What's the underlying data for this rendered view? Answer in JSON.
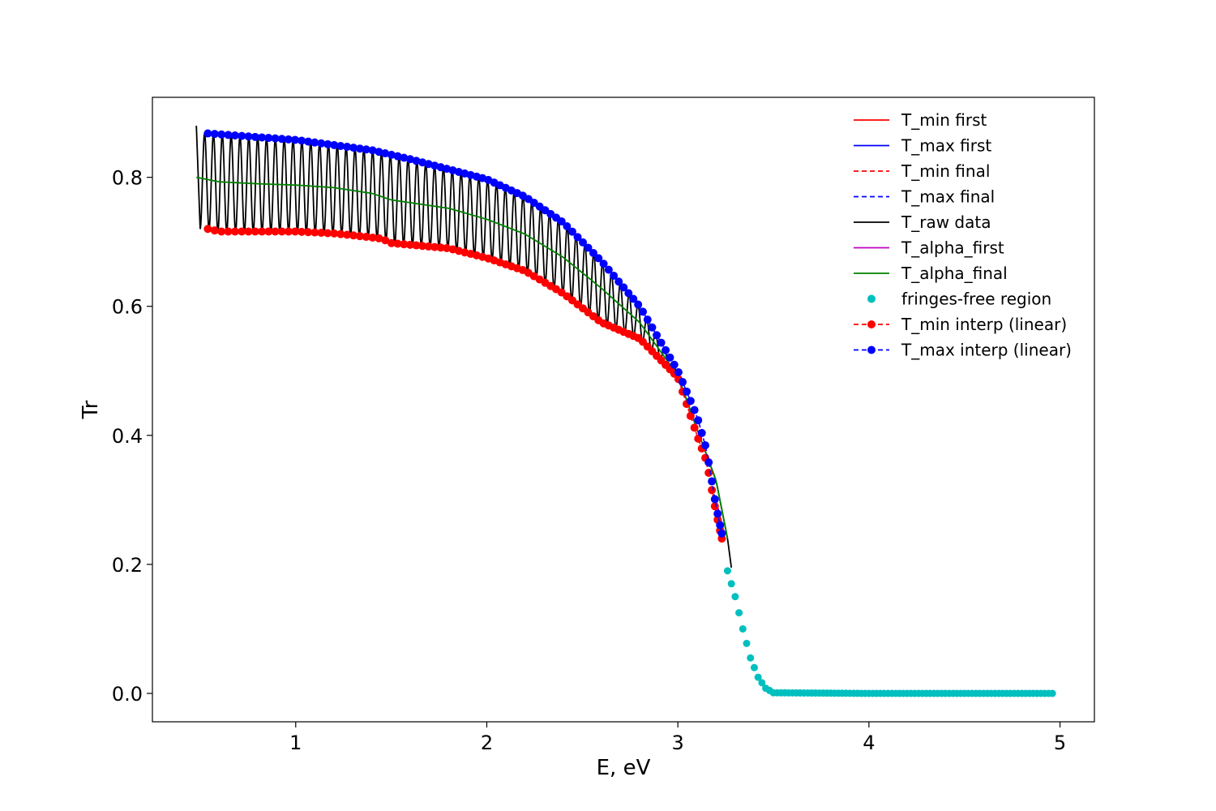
{
  "chart_data": {
    "type": "line",
    "title": "",
    "xlabel": "E, eV",
    "ylabel": "Tr",
    "xlim": [
      0.25,
      5.18
    ],
    "ylim": [
      -0.044,
      0.924
    ],
    "xticks": [
      1,
      2,
      3,
      4,
      5
    ],
    "xtick_labels": [
      "1",
      "2",
      "3",
      "4",
      "5"
    ],
    "yticks": [
      0.0,
      0.2,
      0.4,
      0.6,
      0.8
    ],
    "ytick_labels": [
      "0.0",
      "0.2",
      "0.4",
      "0.6",
      "0.8"
    ],
    "grid": false,
    "legend_position": "top-right",
    "legend": [
      {
        "label": "T_min first",
        "color": "#ff0000",
        "style": "solid",
        "marker": false
      },
      {
        "label": "T_max first",
        "color": "#0000ff",
        "style": "solid",
        "marker": false
      },
      {
        "label": "T_min final",
        "color": "#ff0000",
        "style": "dashed",
        "marker": false
      },
      {
        "label": "T_max final",
        "color": "#0000ff",
        "style": "dashed",
        "marker": false
      },
      {
        "label": "T_raw data",
        "color": "#000000",
        "style": "solid",
        "marker": false
      },
      {
        "label": "T_alpha_first",
        "color": "#bf00bf",
        "style": "solid",
        "marker": false
      },
      {
        "label": "T_alpha_final",
        "color": "#008000",
        "style": "solid",
        "marker": false
      },
      {
        "label": "fringes-free region",
        "color": "#00bfbf",
        "style": "none",
        "marker": true
      },
      {
        "label": "T_min interp (linear)",
        "color": "#ff0000",
        "style": "dashed",
        "marker": true
      },
      {
        "label": "T_max interp (linear)",
        "color": "#0000ff",
        "style": "dashed",
        "marker": true
      }
    ],
    "series": [
      {
        "name": "T_max interp (linear)",
        "color": "#0000ff",
        "x": [
          0.54,
          1.0,
          1.4,
          1.6,
          2.0,
          2.2,
          2.4,
          2.6,
          2.8,
          3.0,
          3.1,
          3.15,
          3.2,
          3.23
        ],
        "y": [
          0.868,
          0.858,
          0.842,
          0.828,
          0.797,
          0.77,
          0.73,
          0.67,
          0.6,
          0.5,
          0.43,
          0.378,
          0.29,
          0.248
        ]
      },
      {
        "name": "T_min interp (linear)",
        "color": "#ff0000",
        "x": [
          0.54,
          0.6,
          1.0,
          1.2,
          1.3,
          1.45,
          1.5,
          1.8,
          2.0,
          2.2,
          2.4,
          2.6,
          2.8,
          3.0,
          3.1,
          3.15,
          3.2,
          3.23
        ],
        "y": [
          0.72,
          0.716,
          0.716,
          0.713,
          0.71,
          0.705,
          0.698,
          0.69,
          0.675,
          0.655,
          0.62,
          0.575,
          0.55,
          0.49,
          0.4,
          0.36,
          0.28,
          0.24
        ]
      },
      {
        "name": "T_alpha_final",
        "color": "#008000",
        "x": [
          0.48,
          0.6,
          0.8,
          1.0,
          1.2,
          1.4,
          1.5,
          1.8,
          2.0,
          2.2,
          2.4,
          2.6,
          2.8,
          3.0,
          3.1,
          3.2,
          3.26
        ],
        "y": [
          0.8,
          0.793,
          0.79,
          0.788,
          0.784,
          0.775,
          0.765,
          0.752,
          0.735,
          0.712,
          0.676,
          0.628,
          0.575,
          0.493,
          0.41,
          0.33,
          0.24
        ]
      },
      {
        "name": "T_raw data",
        "color": "#000000",
        "x": [
          0.48,
          3.28
        ],
        "y": [
          0.88,
          0.195
        ]
      },
      {
        "name": "fringes-free region",
        "color": "#00bfbf",
        "x": [
          3.26,
          3.3,
          3.34,
          3.38,
          3.42,
          3.46,
          3.5,
          4.0,
          4.96
        ],
        "y": [
          0.19,
          0.15,
          0.1,
          0.055,
          0.025,
          0.008,
          0.001,
          0.0,
          0.0
        ]
      }
    ]
  }
}
